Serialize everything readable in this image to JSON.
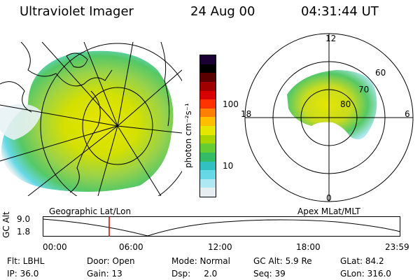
{
  "header": {
    "instrument": "Ultraviolet Imager",
    "date": "24 Aug 00",
    "time": "04:31:44 UT"
  },
  "left_panel": {
    "label": "Geographic Lat/Lon"
  },
  "right_panel": {
    "label": "Apex MLat/MLT",
    "mlt_labels": {
      "top": "12",
      "bottom": "0",
      "left": "18",
      "right": "6"
    },
    "lat_labels": [
      "60",
      "70",
      "80"
    ]
  },
  "colorbar": {
    "unit_label": "photon cm⁻²s⁻¹",
    "tick_100": "100",
    "tick_10": "10",
    "colors": [
      "#1a0033",
      "#000000",
      "#5a0000",
      "#a00000",
      "#d80000",
      "#ff3300",
      "#ff7f00",
      "#ffbf00",
      "#e6e600",
      "#aad400",
      "#66cc33",
      "#33bb66",
      "#33c0c0",
      "#66d8e6",
      "#aee8f2",
      "#e6eef2"
    ]
  },
  "timeline": {
    "axis_label": "GC Alt",
    "y_ticks": [
      "9.0",
      "1.8"
    ],
    "x_ticks": [
      "00:00",
      "06:00",
      "12:00",
      "18:00",
      "23:59"
    ],
    "marker_color": "#cc0000"
  },
  "status": {
    "filter": "Flt: LBHL",
    "door": "Door: Open",
    "mode": "Mode: Normal",
    "gc_alt": "GC Alt: 5.9 Re",
    "glat": "GLat: 84.2",
    "ip": "IP: 36.0",
    "gain": "Gain: 13",
    "dsp": "Dsp:     2.0",
    "seq": "Seq: 39",
    "glon": "GLon: 316.0"
  }
}
